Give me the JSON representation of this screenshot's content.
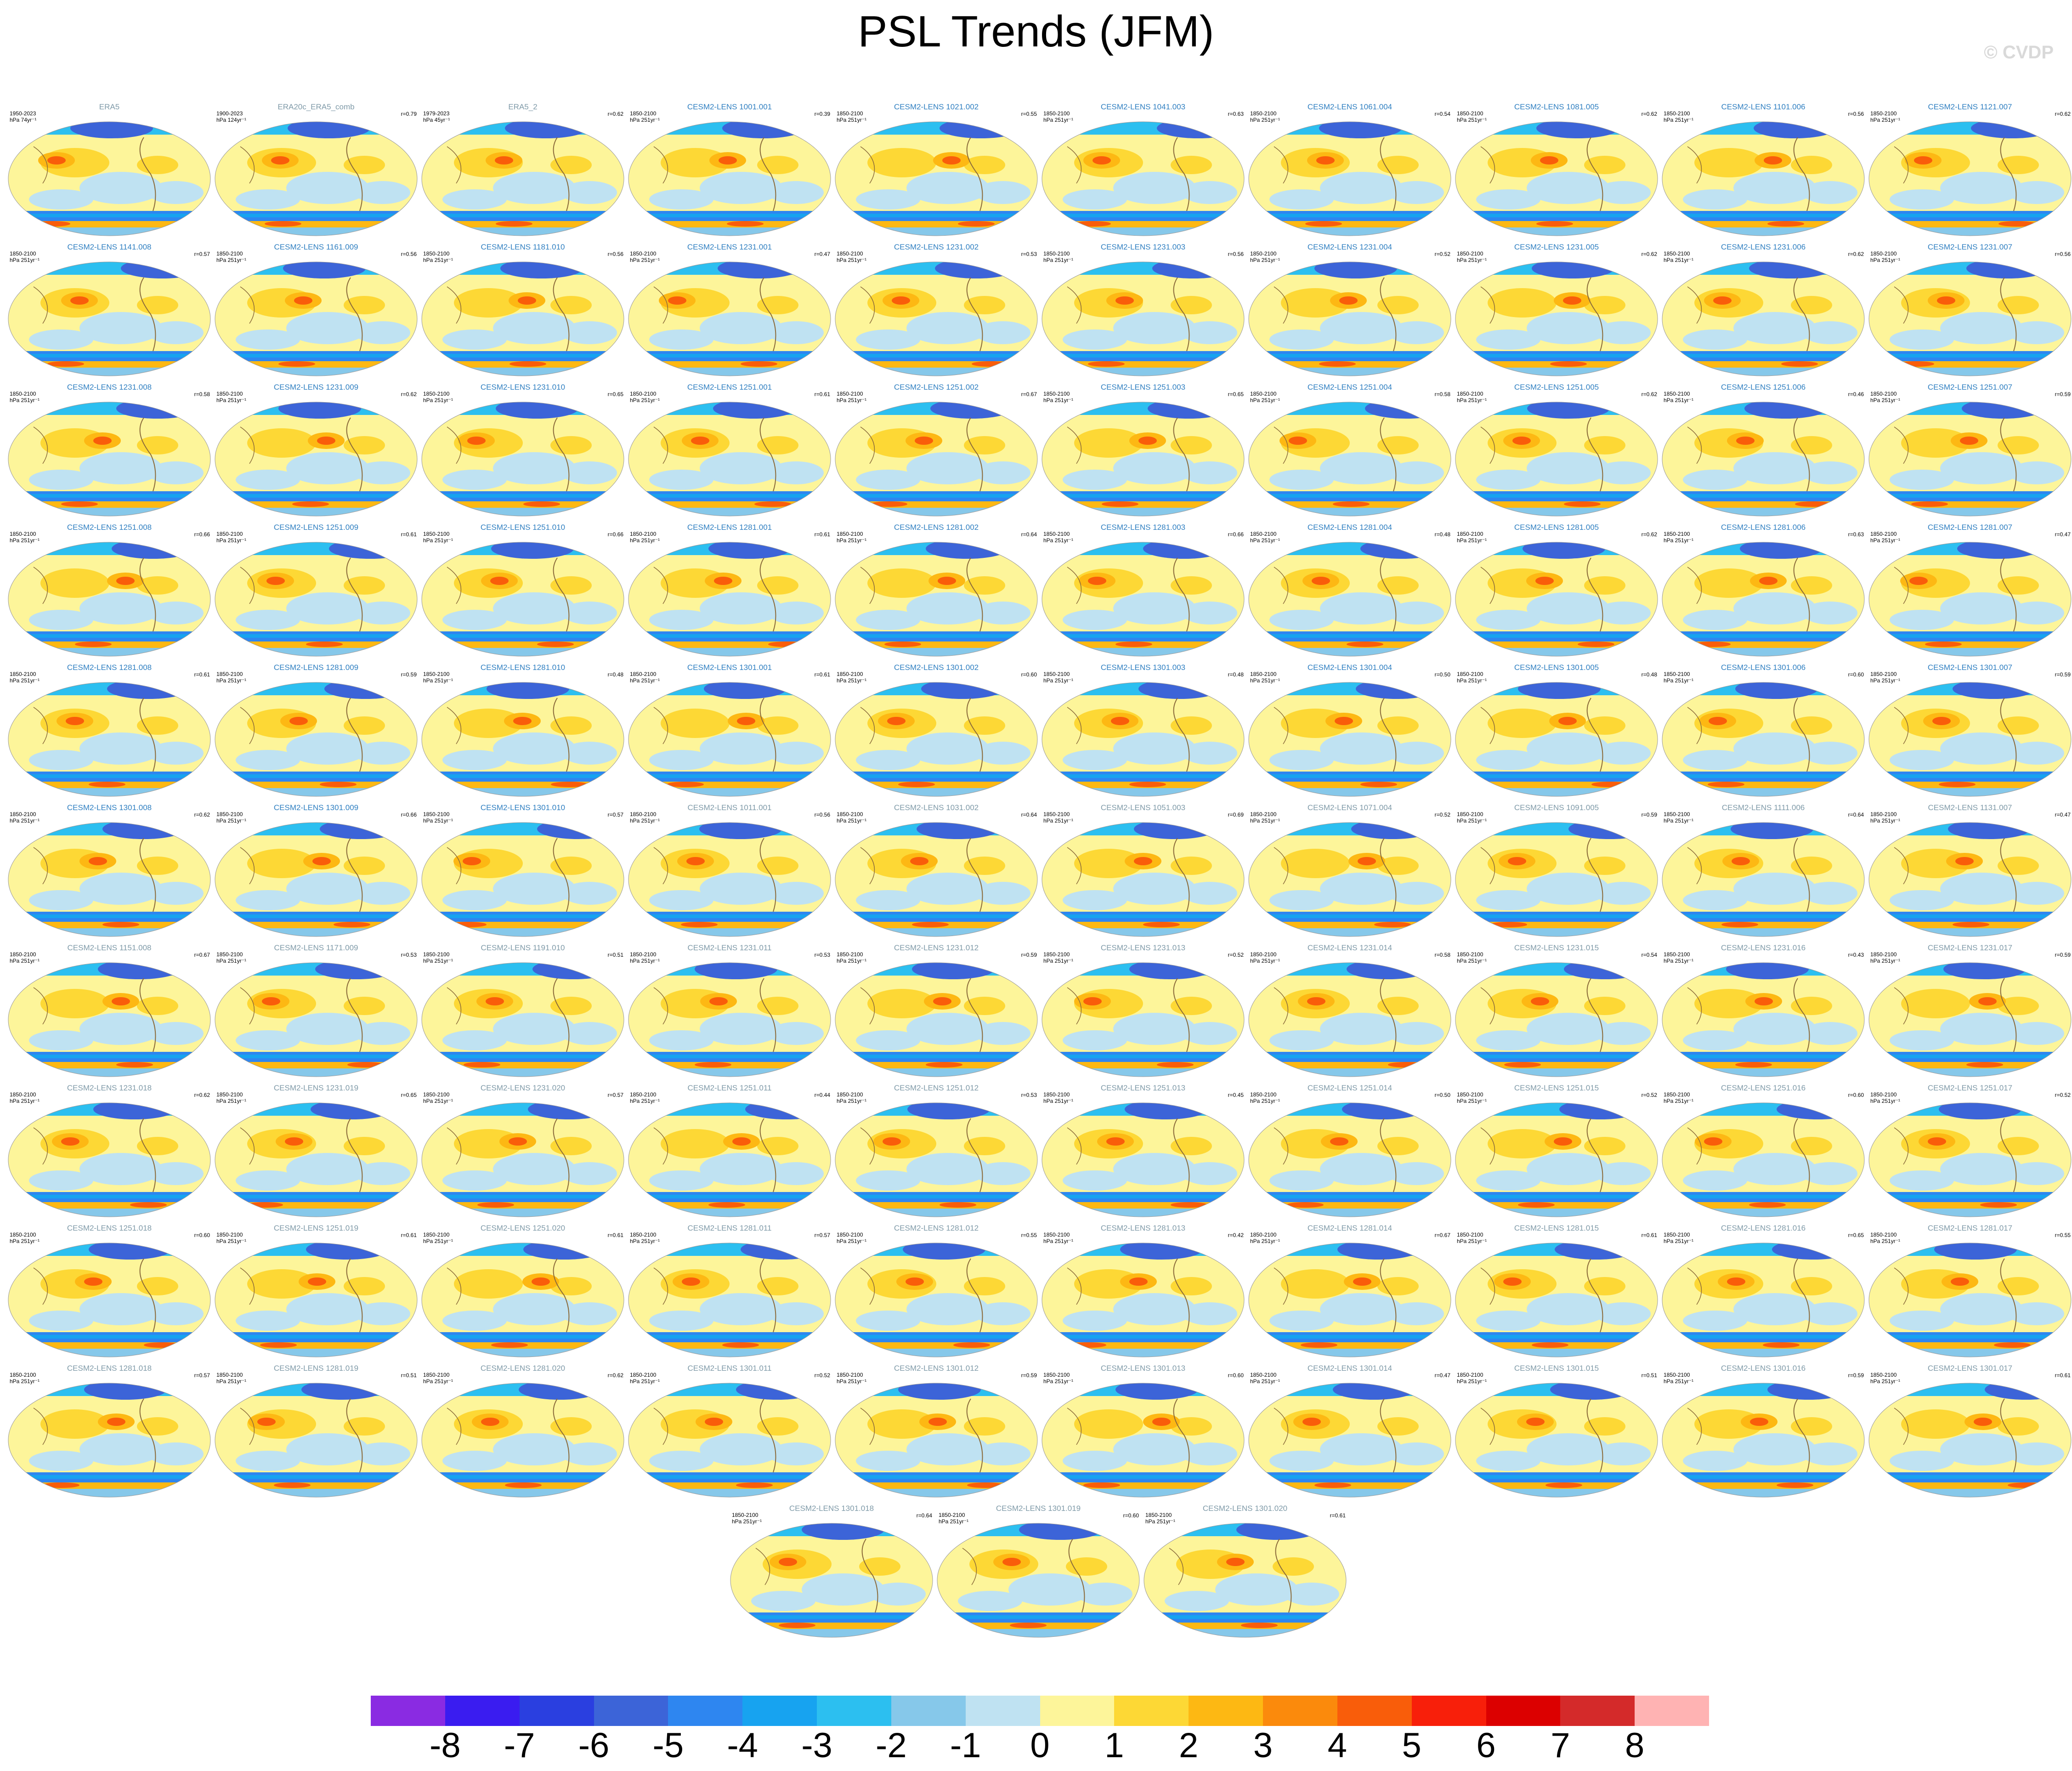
{
  "title": "PSL Trends (JFM)",
  "copyright": "© CVDP",
  "panels": [
    {
      "name": "ERA5",
      "years": "1950-2023",
      "units": "hPa 74yr⁻¹",
      "r": "",
      "obs": true
    },
    {
      "name": "ERA20c_ERA5_comb",
      "years": "1900-2023",
      "units": "hPa 124yr⁻¹",
      "r": "r=0.79",
      "obs": true
    },
    {
      "name": "ERA5_2",
      "years": "1979-2023",
      "units": "hPa 45yr⁻¹",
      "r": "r=0.62",
      "obs": true
    },
    {
      "name": "CESM2-LENS 1001.001",
      "years": "1850-2100",
      "units": "hPa 251yr⁻¹",
      "r": "r=0.39"
    },
    {
      "name": "CESM2-LENS 1021.002",
      "years": "1850-2100",
      "units": "hPa 251yr⁻¹",
      "r": "r=0.55"
    },
    {
      "name": "CESM2-LENS 1041.003",
      "years": "1850-2100",
      "units": "hPa 251yr⁻¹",
      "r": "r=0.63"
    },
    {
      "name": "CESM2-LENS 1061.004",
      "years": "1850-2100",
      "units": "hPa 251yr⁻¹",
      "r": "r=0.54"
    },
    {
      "name": "CESM2-LENS 1081.005",
      "years": "1850-2100",
      "units": "hPa 251yr⁻¹",
      "r": "r=0.62"
    },
    {
      "name": "CESM2-LENS 1101.006",
      "years": "1850-2100",
      "units": "hPa 251yr⁻¹",
      "r": "r=0.56"
    },
    {
      "name": "CESM2-LENS 1121.007",
      "years": "1850-2100",
      "units": "hPa 251yr⁻¹",
      "r": "r=0.62"
    },
    {
      "name": "CESM2-LENS 1141.008",
      "years": "1850-2100",
      "units": "hPa 251yr⁻¹",
      "r": "r=0.57"
    },
    {
      "name": "CESM2-LENS 1161.009",
      "years": "1850-2100",
      "units": "hPa 251yr⁻¹",
      "r": "r=0.56"
    },
    {
      "name": "CESM2-LENS 1181.010",
      "years": "1850-2100",
      "units": "hPa 251yr⁻¹",
      "r": "r=0.56"
    },
    {
      "name": "CESM2-LENS 1231.001",
      "years": "1850-2100",
      "units": "hPa 251yr⁻¹",
      "r": "r=0.47"
    },
    {
      "name": "CESM2-LENS 1231.002",
      "years": "1850-2100",
      "units": "hPa 251yr⁻¹",
      "r": "r=0.53"
    },
    {
      "name": "CESM2-LENS 1231.003",
      "years": "1850-2100",
      "units": "hPa 251yr⁻¹",
      "r": "r=0.56"
    },
    {
      "name": "CESM2-LENS 1231.004",
      "years": "1850-2100",
      "units": "hPa 251yr⁻¹",
      "r": "r=0.52"
    },
    {
      "name": "CESM2-LENS 1231.005",
      "years": "1850-2100",
      "units": "hPa 251yr⁻¹",
      "r": "r=0.62"
    },
    {
      "name": "CESM2-LENS 1231.006",
      "years": "1850-2100",
      "units": "hPa 251yr⁻¹",
      "r": "r=0.62"
    },
    {
      "name": "CESM2-LENS 1231.007",
      "years": "1850-2100",
      "units": "hPa 251yr⁻¹",
      "r": "r=0.56"
    },
    {
      "name": "CESM2-LENS 1231.008",
      "years": "1850-2100",
      "units": "hPa 251yr⁻¹",
      "r": "r=0.58"
    },
    {
      "name": "CESM2-LENS 1231.009",
      "years": "1850-2100",
      "units": "hPa 251yr⁻¹",
      "r": "r=0.62"
    },
    {
      "name": "CESM2-LENS 1231.010",
      "years": "1850-2100",
      "units": "hPa 251yr⁻¹",
      "r": "r=0.65"
    },
    {
      "name": "CESM2-LENS 1251.001",
      "years": "1850-2100",
      "units": "hPa 251yr⁻¹",
      "r": "r=0.61"
    },
    {
      "name": "CESM2-LENS 1251.002",
      "years": "1850-2100",
      "units": "hPa 251yr⁻¹",
      "r": "r=0.67"
    },
    {
      "name": "CESM2-LENS 1251.003",
      "years": "1850-2100",
      "units": "hPa 251yr⁻¹",
      "r": "r=0.65"
    },
    {
      "name": "CESM2-LENS 1251.004",
      "years": "1850-2100",
      "units": "hPa 251yr⁻¹",
      "r": "r=0.58"
    },
    {
      "name": "CESM2-LENS 1251.005",
      "years": "1850-2100",
      "units": "hPa 251yr⁻¹",
      "r": "r=0.62"
    },
    {
      "name": "CESM2-LENS 1251.006",
      "years": "1850-2100",
      "units": "hPa 251yr⁻¹",
      "r": "r=0.46"
    },
    {
      "name": "CESM2-LENS 1251.007",
      "years": "1850-2100",
      "units": "hPa 251yr⁻¹",
      "r": "r=0.59"
    },
    {
      "name": "CESM2-LENS 1251.008",
      "years": "1850-2100",
      "units": "hPa 251yr⁻¹",
      "r": "r=0.66"
    },
    {
      "name": "CESM2-LENS 1251.009",
      "years": "1850-2100",
      "units": "hPa 251yr⁻¹",
      "r": "r=0.61"
    },
    {
      "name": "CESM2-LENS 1251.010",
      "years": "1850-2100",
      "units": "hPa 251yr⁻¹",
      "r": "r=0.66"
    },
    {
      "name": "CESM2-LENS 1281.001",
      "years": "1850-2100",
      "units": "hPa 251yr⁻¹",
      "r": "r=0.61"
    },
    {
      "name": "CESM2-LENS 1281.002",
      "years": "1850-2100",
      "units": "hPa 251yr⁻¹",
      "r": "r=0.64"
    },
    {
      "name": "CESM2-LENS 1281.003",
      "years": "1850-2100",
      "units": "hPa 251yr⁻¹",
      "r": "r=0.66"
    },
    {
      "name": "CESM2-LENS 1281.004",
      "years": "1850-2100",
      "units": "hPa 251yr⁻¹",
      "r": "r=0.48"
    },
    {
      "name": "CESM2-LENS 1281.005",
      "years": "1850-2100",
      "units": "hPa 251yr⁻¹",
      "r": "r=0.62"
    },
    {
      "name": "CESM2-LENS 1281.006",
      "years": "1850-2100",
      "units": "hPa 251yr⁻¹",
      "r": "r=0.63"
    },
    {
      "name": "CESM2-LENS 1281.007",
      "years": "1850-2100",
      "units": "hPa 251yr⁻¹",
      "r": "r=0.47"
    },
    {
      "name": "CESM2-LENS 1281.008",
      "years": "1850-2100",
      "units": "hPa 251yr⁻¹",
      "r": "r=0.61"
    },
    {
      "name": "CESM2-LENS 1281.009",
      "years": "1850-2100",
      "units": "hPa 251yr⁻¹",
      "r": "r=0.59"
    },
    {
      "name": "CESM2-LENS 1281.010",
      "years": "1850-2100",
      "units": "hPa 251yr⁻¹",
      "r": "r=0.48"
    },
    {
      "name": "CESM2-LENS 1301.001",
      "years": "1850-2100",
      "units": "hPa 251yr⁻¹",
      "r": "r=0.61"
    },
    {
      "name": "CESM2-LENS 1301.002",
      "years": "1850-2100",
      "units": "hPa 251yr⁻¹",
      "r": "r=0.60"
    },
    {
      "name": "CESM2-LENS 1301.003",
      "years": "1850-2100",
      "units": "hPa 251yr⁻¹",
      "r": "r=0.48"
    },
    {
      "name": "CESM2-LENS 1301.004",
      "years": "1850-2100",
      "units": "hPa 251yr⁻¹",
      "r": "r=0.50"
    },
    {
      "name": "CESM2-LENS 1301.005",
      "years": "1850-2100",
      "units": "hPa 251yr⁻¹",
      "r": "r=0.48"
    },
    {
      "name": "CESM2-LENS 1301.006",
      "years": "1850-2100",
      "units": "hPa 251yr⁻¹",
      "r": "r=0.60"
    },
    {
      "name": "CESM2-LENS 1301.007",
      "years": "1850-2100",
      "units": "hPa 251yr⁻¹",
      "r": "r=0.59"
    },
    {
      "name": "CESM2-LENS 1301.008",
      "years": "1850-2100",
      "units": "hPa 251yr⁻¹",
      "r": "r=0.62"
    },
    {
      "name": "CESM2-LENS 1301.009",
      "years": "1850-2100",
      "units": "hPa 251yr⁻¹",
      "r": "r=0.66"
    },
    {
      "name": "CESM2-LENS 1301.010",
      "years": "1850-2100",
      "units": "hPa 251yr⁻¹",
      "r": "r=0.57"
    },
    {
      "name": "CESM2-LENS 1011.001",
      "years": "1850-2100",
      "units": "hPa 251yr⁻¹",
      "r": "r=0.56",
      "obs": true
    },
    {
      "name": "CESM2-LENS 1031.002",
      "years": "1850-2100",
      "units": "hPa 251yr⁻¹",
      "r": "r=0.64",
      "obs": true
    },
    {
      "name": "CESM2-LENS 1051.003",
      "years": "1850-2100",
      "units": "hPa 251yr⁻¹",
      "r": "r=0.69",
      "obs": true
    },
    {
      "name": "CESM2-LENS 1071.004",
      "years": "1850-2100",
      "units": "hPa 251yr⁻¹",
      "r": "r=0.52",
      "obs": true
    },
    {
      "name": "CESM2-LENS 1091.005",
      "years": "1850-2100",
      "units": "hPa 251yr⁻¹",
      "r": "r=0.59",
      "obs": true
    },
    {
      "name": "CESM2-LENS 1111.006",
      "years": "1850-2100",
      "units": "hPa 251yr⁻¹",
      "r": "r=0.64",
      "obs": true
    },
    {
      "name": "CESM2-LENS 1131.007",
      "years": "1850-2100",
      "units": "hPa 251yr⁻¹",
      "r": "r=0.47",
      "obs": true
    },
    {
      "name": "CESM2-LENS 1151.008",
      "years": "1850-2100",
      "units": "hPa 251yr⁻¹",
      "r": "r=0.67",
      "obs": true
    },
    {
      "name": "CESM2-LENS 1171.009",
      "years": "1850-2100",
      "units": "hPa 251yr⁻¹",
      "r": "r=0.53",
      "obs": true
    },
    {
      "name": "CESM2-LENS 1191.010",
      "years": "1850-2100",
      "units": "hPa 251yr⁻¹",
      "r": "r=0.51",
      "obs": true
    },
    {
      "name": "CESM2-LENS 1231.011",
      "years": "1850-2100",
      "units": "hPa 251yr⁻¹",
      "r": "r=0.53",
      "obs": true
    },
    {
      "name": "CESM2-LENS 1231.012",
      "years": "1850-2100",
      "units": "hPa 251yr⁻¹",
      "r": "r=0.59",
      "obs": true
    },
    {
      "name": "CESM2-LENS 1231.013",
      "years": "1850-2100",
      "units": "hPa 251yr⁻¹",
      "r": "r=0.52",
      "obs": true
    },
    {
      "name": "CESM2-LENS 1231.014",
      "years": "1850-2100",
      "units": "hPa 251yr⁻¹",
      "r": "r=0.58",
      "obs": true
    },
    {
      "name": "CESM2-LENS 1231.015",
      "years": "1850-2100",
      "units": "hPa 251yr⁻¹",
      "r": "r=0.54",
      "obs": true
    },
    {
      "name": "CESM2-LENS 1231.016",
      "years": "1850-2100",
      "units": "hPa 251yr⁻¹",
      "r": "r=0.43",
      "obs": true
    },
    {
      "name": "CESM2-LENS 1231.017",
      "years": "1850-2100",
      "units": "hPa 251yr⁻¹",
      "r": "r=0.59",
      "obs": true
    },
    {
      "name": "CESM2-LENS 1231.018",
      "years": "1850-2100",
      "units": "hPa 251yr⁻¹",
      "r": "r=0.62",
      "obs": true
    },
    {
      "name": "CESM2-LENS 1231.019",
      "years": "1850-2100",
      "units": "hPa 251yr⁻¹",
      "r": "r=0.65",
      "obs": true
    },
    {
      "name": "CESM2-LENS 1231.020",
      "years": "1850-2100",
      "units": "hPa 251yr⁻¹",
      "r": "r=0.57",
      "obs": true
    },
    {
      "name": "CESM2-LENS 1251.011",
      "years": "1850-2100",
      "units": "hPa 251yr⁻¹",
      "r": "r=0.44",
      "obs": true
    },
    {
      "name": "CESM2-LENS 1251.012",
      "years": "1850-2100",
      "units": "hPa 251yr⁻¹",
      "r": "r=0.53",
      "obs": true
    },
    {
      "name": "CESM2-LENS 1251.013",
      "years": "1850-2100",
      "units": "hPa 251yr⁻¹",
      "r": "r=0.45",
      "obs": true
    },
    {
      "name": "CESM2-LENS 1251.014",
      "years": "1850-2100",
      "units": "hPa 251yr⁻¹",
      "r": "r=0.50",
      "obs": true
    },
    {
      "name": "CESM2-LENS 1251.015",
      "years": "1850-2100",
      "units": "hPa 251yr⁻¹",
      "r": "r=0.52",
      "obs": true
    },
    {
      "name": "CESM2-LENS 1251.016",
      "years": "1850-2100",
      "units": "hPa 251yr⁻¹",
      "r": "r=0.60",
      "obs": true
    },
    {
      "name": "CESM2-LENS 1251.017",
      "years": "1850-2100",
      "units": "hPa 251yr⁻¹",
      "r": "r=0.52",
      "obs": true
    },
    {
      "name": "CESM2-LENS 1251.018",
      "years": "1850-2100",
      "units": "hPa 251yr⁻¹",
      "r": "r=0.60",
      "obs": true
    },
    {
      "name": "CESM2-LENS 1251.019",
      "years": "1850-2100",
      "units": "hPa 251yr⁻¹",
      "r": "r=0.61",
      "obs": true
    },
    {
      "name": "CESM2-LENS 1251.020",
      "years": "1850-2100",
      "units": "hPa 251yr⁻¹",
      "r": "r=0.61",
      "obs": true
    },
    {
      "name": "CESM2-LENS 1281.011",
      "years": "1850-2100",
      "units": "hPa 251yr⁻¹",
      "r": "r=0.57",
      "obs": true
    },
    {
      "name": "CESM2-LENS 1281.012",
      "years": "1850-2100",
      "units": "hPa 251yr⁻¹",
      "r": "r=0.55",
      "obs": true
    },
    {
      "name": "CESM2-LENS 1281.013",
      "years": "1850-2100",
      "units": "hPa 251yr⁻¹",
      "r": "r=0.42",
      "obs": true
    },
    {
      "name": "CESM2-LENS 1281.014",
      "years": "1850-2100",
      "units": "hPa 251yr⁻¹",
      "r": "r=0.67",
      "obs": true
    },
    {
      "name": "CESM2-LENS 1281.015",
      "years": "1850-2100",
      "units": "hPa 251yr⁻¹",
      "r": "r=0.61",
      "obs": true
    },
    {
      "name": "CESM2-LENS 1281.016",
      "years": "1850-2100",
      "units": "hPa 251yr⁻¹",
      "r": "r=0.65",
      "obs": true
    },
    {
      "name": "CESM2-LENS 1281.017",
      "years": "1850-2100",
      "units": "hPa 251yr⁻¹",
      "r": "r=0.55",
      "obs": true
    },
    {
      "name": "CESM2-LENS 1281.018",
      "years": "1850-2100",
      "units": "hPa 251yr⁻¹",
      "r": "r=0.57",
      "obs": true
    },
    {
      "name": "CESM2-LENS 1281.019",
      "years": "1850-2100",
      "units": "hPa 251yr⁻¹",
      "r": "r=0.51",
      "obs": true
    },
    {
      "name": "CESM2-LENS 1281.020",
      "years": "1850-2100",
      "units": "hPa 251yr⁻¹",
      "r": "r=0.62",
      "obs": true
    },
    {
      "name": "CESM2-LENS 1301.011",
      "years": "1850-2100",
      "units": "hPa 251yr⁻¹",
      "r": "r=0.52",
      "obs": true
    },
    {
      "name": "CESM2-LENS 1301.012",
      "years": "1850-2100",
      "units": "hPa 251yr⁻¹",
      "r": "r=0.59",
      "obs": true
    },
    {
      "name": "CESM2-LENS 1301.013",
      "years": "1850-2100",
      "units": "hPa 251yr⁻¹",
      "r": "r=0.60",
      "obs": true
    },
    {
      "name": "CESM2-LENS 1301.014",
      "years": "1850-2100",
      "units": "hPa 251yr⁻¹",
      "r": "r=0.47",
      "obs": true
    },
    {
      "name": "CESM2-LENS 1301.015",
      "years": "1850-2100",
      "units": "hPa 251yr⁻¹",
      "r": "r=0.51",
      "obs": true
    },
    {
      "name": "CESM2-LENS 1301.016",
      "years": "1850-2100",
      "units": "hPa 251yr⁻¹",
      "r": "r=0.59",
      "obs": true
    },
    {
      "name": "CESM2-LENS 1301.017",
      "years": "1850-2100",
      "units": "hPa 251yr⁻¹",
      "r": "r=0.61",
      "obs": true
    },
    {
      "name": "CESM2-LENS 1301.018",
      "years": "1850-2100",
      "units": "hPa 251yr⁻¹",
      "r": "r=0.64",
      "obs": true
    },
    {
      "name": "CESM2-LENS 1301.019",
      "years": "1850-2100",
      "units": "hPa 251yr⁻¹",
      "r": "r=0.60",
      "obs": true
    },
    {
      "name": "CESM2-LENS 1301.020",
      "years": "1850-2100",
      "units": "hPa 251yr⁻¹",
      "r": "r=0.61",
      "obs": true
    }
  ],
  "colorbar": {
    "labels": [
      "-8",
      "-7",
      "-6",
      "-5",
      "-4",
      "-3",
      "-2",
      "-1",
      "0",
      "1",
      "2",
      "3",
      "4",
      "5",
      "6",
      "7",
      "8"
    ],
    "colors": [
      "#8a2be2",
      "#3a1cf0",
      "#2a3fe0",
      "#3c64d8",
      "#2e86f0",
      "#17a3f0",
      "#2cbff0",
      "#86c8ea",
      "#bfe2f2",
      "#fdf59a",
      "#fdd835",
      "#fdb813",
      "#fb8a0c",
      "#f95d0a",
      "#f81f0a",
      "#dc0000",
      "#d42a2a",
      "#ffb3b3"
    ]
  }
}
